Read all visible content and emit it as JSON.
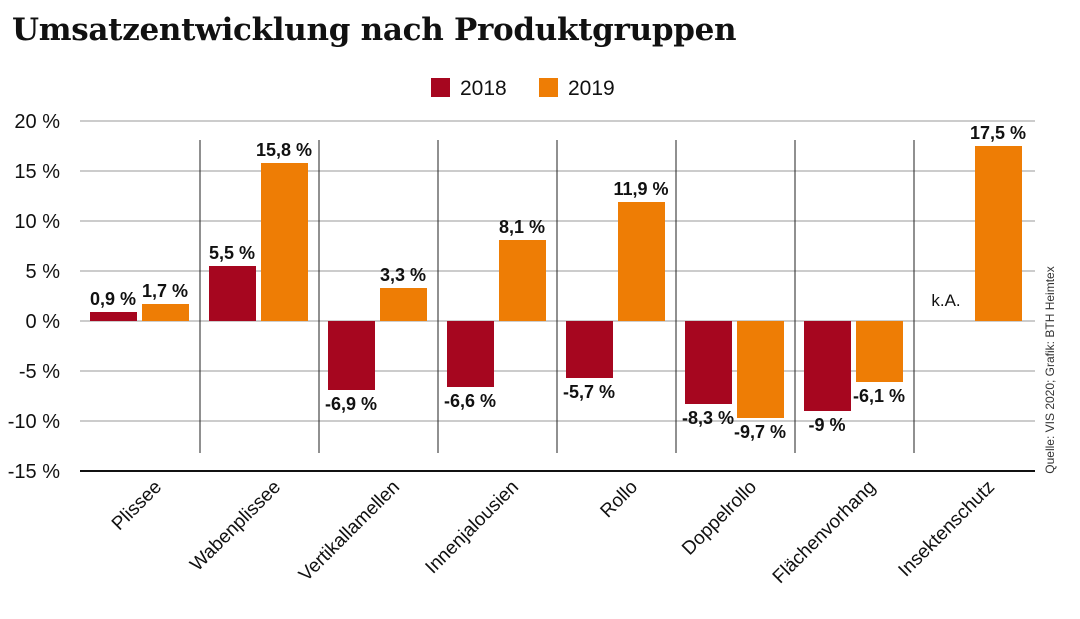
{
  "title": "Umsatzentwicklung nach Produktgruppen",
  "source": "Quelle: VIS 2020; Grafik: BTH Heimtex",
  "chart_data": {
    "type": "bar",
    "title": "Umsatzentwicklung nach Produktgruppen",
    "xlabel": "",
    "ylabel": "",
    "ylim": [
      -15,
      20
    ],
    "yticks": [
      20,
      15,
      10,
      5,
      0,
      -5,
      -10,
      -15
    ],
    "ytick_labels": [
      "20 %",
      "15 %",
      "10 %",
      "5 %",
      "0 %",
      "-5 %",
      "-10 %",
      "-15 %"
    ],
    "grid": true,
    "legend_position": "top-center",
    "categories": [
      "Plissee",
      "Wabenplissee",
      "Vertikallamellen",
      "Innenjalousien",
      "Rollo",
      "Doppelrollo",
      "Flächenvorhang",
      "Insektenschutz"
    ],
    "series": [
      {
        "name": "2018",
        "color": "#a6061f",
        "values": [
          0.9,
          5.5,
          -6.9,
          -6.6,
          -5.7,
          -8.3,
          -9,
          null
        ],
        "labels": [
          "0,9 %",
          "5,5 %",
          "-6,9 %",
          "-6,6 %",
          "-5,7 %",
          "-8,3 %",
          "-9 %",
          "k.A."
        ]
      },
      {
        "name": "2019",
        "color": "#ee7d05",
        "values": [
          1.7,
          15.8,
          3.3,
          8.1,
          11.9,
          -9.7,
          -6.1,
          17.5
        ],
        "labels": [
          "1,7 %",
          "15,8 %",
          "3,3 %",
          "8,1 %",
          "11,9 %",
          "-9,7 %",
          "-6,1 %",
          "17,5 %"
        ]
      }
    ]
  }
}
